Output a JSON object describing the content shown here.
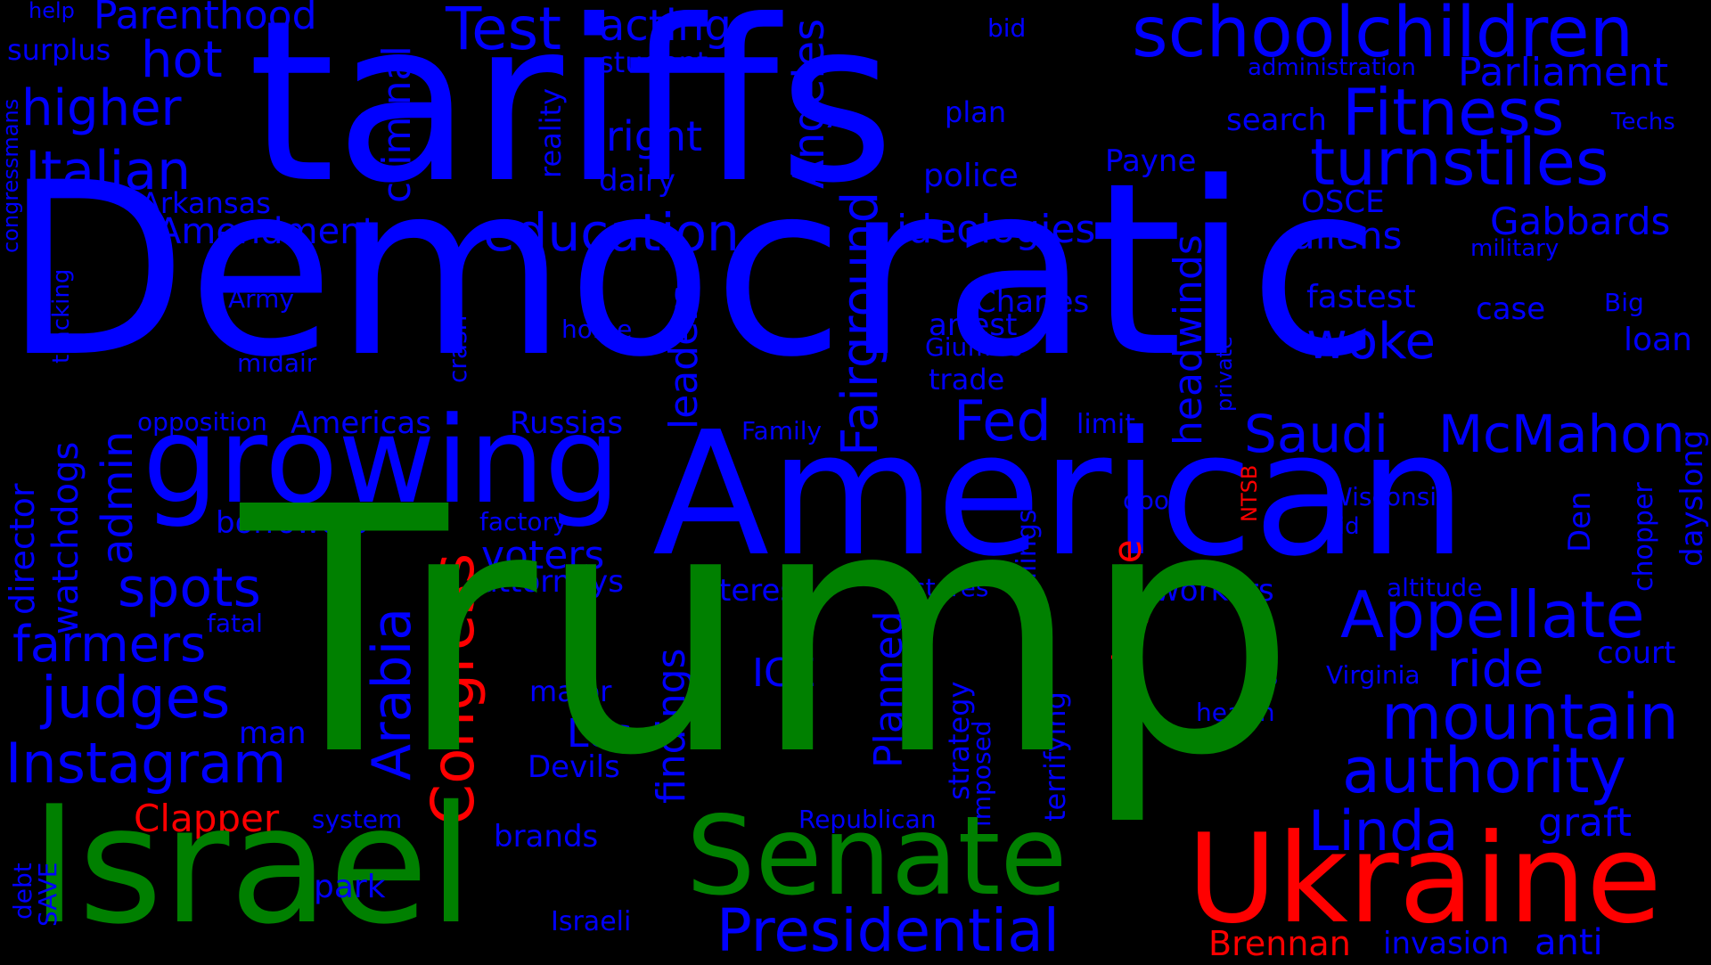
{
  "colors": {
    "background": "#000000",
    "blue": "#0000ff",
    "green": "#008000",
    "red": "#ff0000"
  },
  "words": {
    "help": "help",
    "parenthood": "Parenthood",
    "surplus": "surplus",
    "hot": "hot",
    "test": "Test",
    "acting": "acting",
    "tariffs": "tariffs",
    "student": "student",
    "bid": "bid",
    "schoolchildren": "schoolchildren",
    "administration": "administration",
    "parliament": "Parliament",
    "higher": "higher",
    "criminal": "criminal",
    "angeles": "Angeles",
    "right": "right",
    "plan": "plan",
    "fitness": "Fitness",
    "search": "search",
    "techs": "Techs",
    "congressmans": "congressmans",
    "italian": "Italian",
    "reality": "reality",
    "dairy": "dairy",
    "police": "police",
    "payne": "Payne",
    "turnstiles": "turnstiles",
    "arkansas": "Arkansas",
    "fairground": "Fairground",
    "osce": "OSCE",
    "amendment": "Amendment",
    "education": "education",
    "ideologies": "ideologies",
    "aliens": "aliens",
    "gabbards": "Gabbards",
    "military": "military",
    "democratic": "Democratic",
    "tracking": "tracking",
    "army": "Army",
    "leaders": "leaders",
    "headwinds": "headwinds",
    "charles": "Charles",
    "fastest": "fastest",
    "case": "case",
    "big": "Big",
    "home": "home",
    "arrest": "arrest",
    "woke": "woke",
    "loan": "loan",
    "midair": "midair",
    "crash": "crash",
    "giuffres": "Giuffres",
    "private": "private",
    "trade": "trade",
    "director": "director",
    "watchdogs": "watchdogs",
    "admin": "admin",
    "opposition": "opposition",
    "americas": "Americas",
    "russias": "Russias",
    "family": "Family",
    "limit": "limit",
    "fed": "Fed",
    "saudi": "Saudi",
    "mcmahon": "McMahon",
    "dayslong": "dayslong",
    "growing": "growing",
    "american": "American",
    "killings": "killings",
    "ntsb": "NTSB",
    "borrowers": "borrowers",
    "factory": "factory",
    "door": "door",
    "wisconsin": "Wisconsin",
    "aid": "aid",
    "den": "Den",
    "chopper": "chopper",
    "congress": "Congress",
    "voters": "voters",
    "russiagate": "Russiagate",
    "spots": "spots",
    "arabia": "Arabia",
    "attorneys": "attorneys",
    "interest": "interest",
    "stores": "stores",
    "workers": "workers",
    "altitude": "altitude",
    "appellate": "Appellate",
    "fatal": "fatal",
    "farmers": "farmers",
    "trump": "Trump",
    "court": "court",
    "findings": "findings",
    "ice": "ICE",
    "virginia": "Virginia",
    "ride": "ride",
    "us": "US",
    "judges": "judges",
    "major": "major",
    "planned": "Planned",
    "terrifying": "terrifying",
    "health": "health",
    "mountain": "mountain",
    "los": "Los",
    "man": "man",
    "instagram": "Instagram",
    "strategy": "strategy",
    "imposed": "imposed",
    "authority": "authority",
    "devils": "Devils",
    "clapper": "Clapper",
    "system": "system",
    "republican": "Republican",
    "linda": "Linda",
    "graft": "graft",
    "brands": "brands",
    "israel": "Israel",
    "senate": "Senate",
    "ukraine": "Ukraine",
    "debt": "debt",
    "save": "SAVE",
    "park": "park",
    "israeli": "Israeli",
    "presidential": "Presidential",
    "brennan": "Brennan",
    "invasion": "invasion",
    "anti": "anti"
  }
}
